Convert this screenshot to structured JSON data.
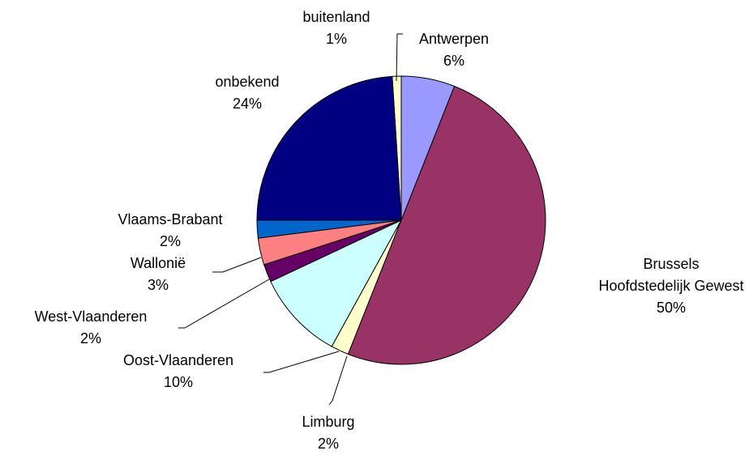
{
  "chart_data": {
    "type": "pie",
    "categories": [
      "Antwerpen",
      "Brussels\nHoofdstedelijk Gewest",
      "Limburg",
      "Oost-Vlaanderen",
      "West-Vlaanderen",
      "Wallonië",
      "Vlaams-Brabant",
      "onbekend",
      "buitenland"
    ],
    "values": [
      6,
      50,
      2,
      10,
      2,
      3,
      2,
      24,
      1
    ],
    "value_labels": [
      "6%",
      "50%",
      "2%",
      "10%",
      "2%",
      "3%",
      "2%",
      "24%",
      "1%"
    ],
    "colors": [
      "#9999ff",
      "#993366",
      "#ffffcc",
      "#ccffff",
      "#660066",
      "#ff8080",
      "#0066cc",
      "#000080",
      "#ffffcc"
    ]
  }
}
